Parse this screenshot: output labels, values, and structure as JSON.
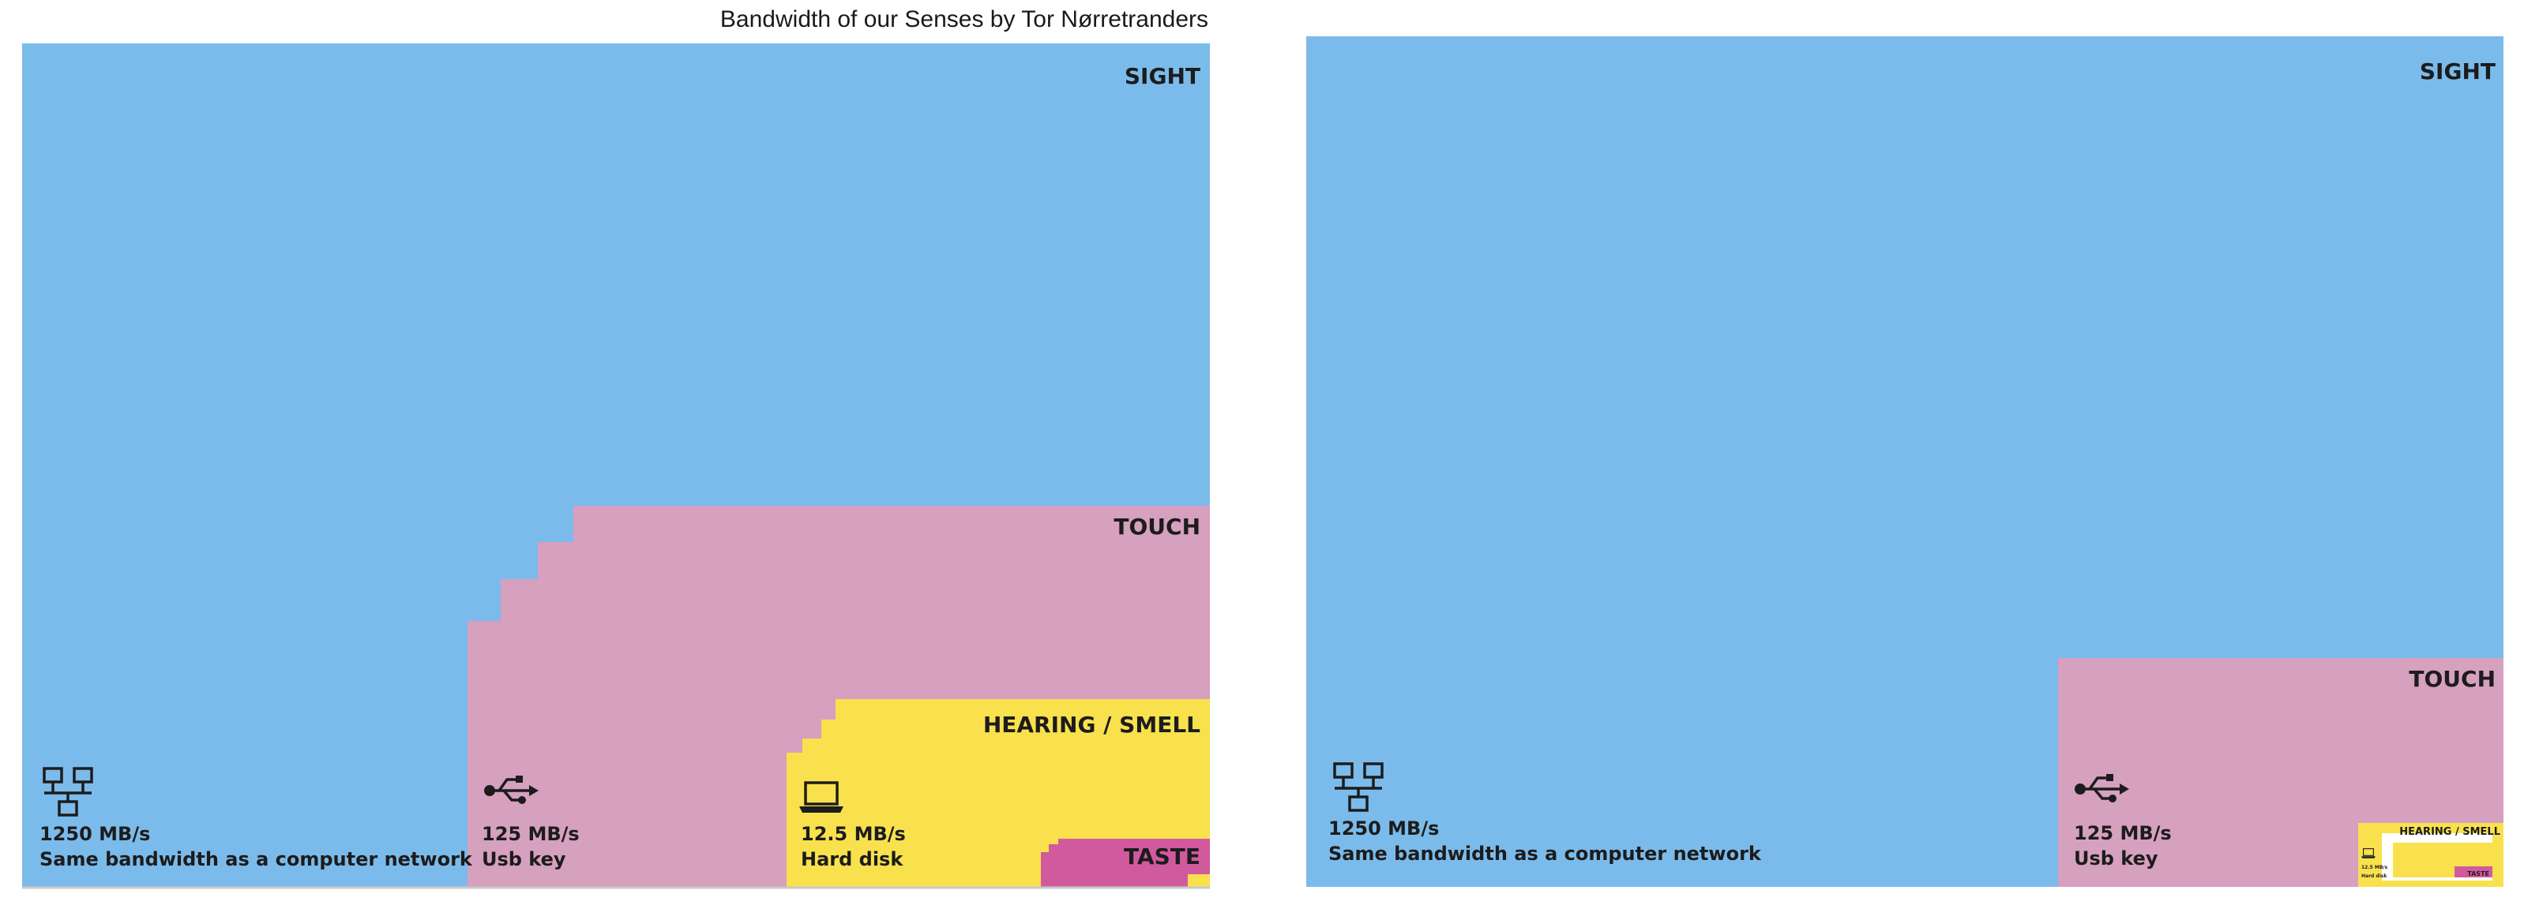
{
  "title": "Bandwidth of our Senses by Tor Nørretranders",
  "colors": {
    "sight": "#7bbbeb",
    "touch": "#d6a0bf",
    "hearing_smell": "#f8e14d",
    "taste": "#d15a9e",
    "text": "#1c1c1c"
  },
  "left": {
    "sight": "SIGHT",
    "touch": "TOUCH",
    "hearing_smell": "HEARING / SMELL",
    "taste": "TASTE",
    "network": {
      "icon": "network-icon",
      "rate": "1250 MB/s",
      "desc": "Same bandwidth as a computer network"
    },
    "usb": {
      "icon": "usb-icon",
      "rate": "125 MB/s",
      "desc": "Usb key"
    },
    "disk": {
      "icon": "laptop-icon",
      "rate": "12.5 MB/s",
      "desc": "Hard disk"
    }
  },
  "right": {
    "sight": "SIGHT",
    "touch": "TOUCH",
    "hearing_smell": "HEARING / SMELL",
    "taste": "TASTE",
    "network": {
      "icon": "network-icon",
      "rate": "1250 MB/s",
      "desc": "Same bandwidth as a computer network"
    },
    "usb": {
      "icon": "usb-icon",
      "rate": "125 MB/s",
      "desc": "Usb key"
    },
    "disk": {
      "icon": "laptop-icon",
      "rate": "12.5 MB/s",
      "desc": "Hard disk"
    }
  }
}
